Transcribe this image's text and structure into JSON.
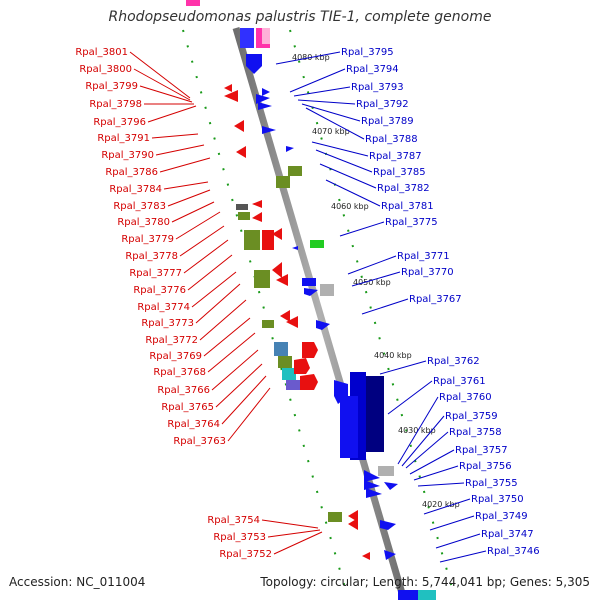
{
  "title": "Rhodopseudomonas palustris TIE-1, complete genome",
  "accession": "Accession: NC_011004",
  "summary": "Topology: circular; Length: 5,744,041 bp; Genes: 5,305",
  "kbp_labels": [
    "4080 kbp",
    "4070 kbp",
    "4060 kbp",
    "4050 kbp",
    "4040 kbp",
    "4030 kbp",
    "4020 kbp"
  ],
  "left_genes": [
    "Rpal_3801",
    "Rpal_3800",
    "Rpal_3799",
    "Rpal_3798",
    "Rpal_3796",
    "Rpal_3791",
    "Rpal_3790",
    "Rpal_3786",
    "Rpal_3784",
    "Rpal_3783",
    "Rpal_3780",
    "Rpal_3779",
    "Rpal_3778",
    "Rpal_3777",
    "Rpal_3776",
    "Rpal_3774",
    "Rpal_3773",
    "Rpal_3772",
    "Rpal_3769",
    "Rpal_3768",
    "Rpal_3766",
    "Rpal_3765",
    "Rpal_3764",
    "Rpal_3763",
    "Rpal_3754",
    "Rpal_3753",
    "Rpal_3752"
  ],
  "right_genes": [
    "Rpal_3795",
    "Rpal_3794",
    "Rpal_3793",
    "Rpal_3792",
    "Rpal_3789",
    "Rpal_3788",
    "Rpal_3787",
    "Rpal_3785",
    "Rpal_3782",
    "Rpal_3781",
    "Rpal_3775",
    "Rpal_3771",
    "Rpal_3770",
    "Rpal_3767",
    "Rpal_3762",
    "Rpal_3761",
    "Rpal_3760",
    "Rpal_3759",
    "Rpal_3758",
    "Rpal_3757",
    "Rpal_3756",
    "Rpal_3755",
    "Rpal_3750",
    "Rpal_3749",
    "Rpal_3747",
    "Rpal_3746"
  ],
  "colors": {
    "forward": "#1010f0",
    "reverse": "#e81010",
    "other": "#6b8e23",
    "backbone": "#888888"
  }
}
